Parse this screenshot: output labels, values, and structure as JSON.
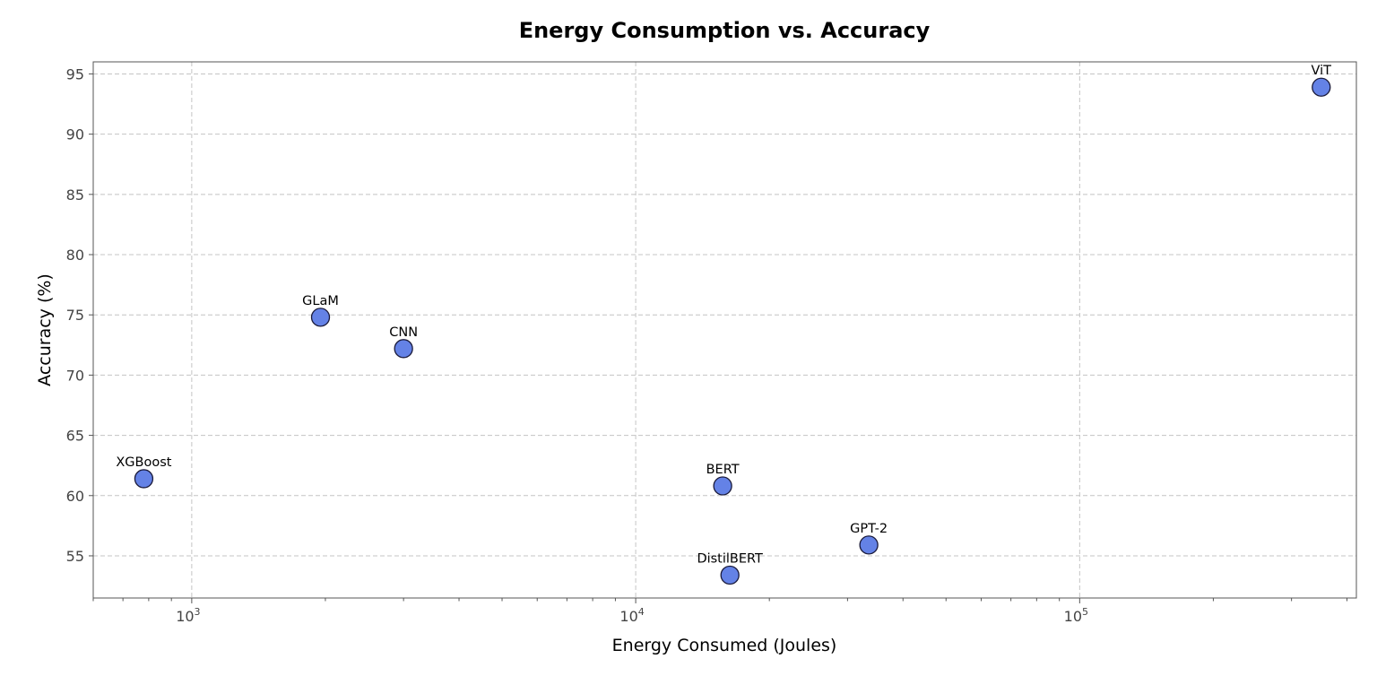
{
  "chart_data": {
    "type": "scatter",
    "title": "Energy Consumption vs. Accuracy",
    "xlabel": "Energy Consumed (Joules)",
    "ylabel": "Accuracy (%)",
    "xscale": "log",
    "xlim": [
      600,
      420000
    ],
    "ylim": [
      51.5,
      96.0
    ],
    "xticks": [
      1000,
      10000,
      100000
    ],
    "xtick_labels": [
      {
        "base": "10",
        "exp": "3"
      },
      {
        "base": "10",
        "exp": "4"
      },
      {
        "base": "10",
        "exp": "5"
      }
    ],
    "yticks": [
      55,
      60,
      65,
      70,
      75,
      80,
      85,
      90,
      95
    ],
    "grid": true,
    "marker_color": "#6482e6",
    "marker_edge_color": "#1a1a3a",
    "points": [
      {
        "label": "XGBoost",
        "x": 780,
        "y": 61.4
      },
      {
        "label": "GLaM",
        "x": 1950,
        "y": 74.8
      },
      {
        "label": "CNN",
        "x": 3000,
        "y": 72.2
      },
      {
        "label": "BERT",
        "x": 15700,
        "y": 60.8
      },
      {
        "label": "DistilBERT",
        "x": 16300,
        "y": 53.4
      },
      {
        "label": "GPT-2",
        "x": 33500,
        "y": 55.9
      },
      {
        "label": "ViT",
        "x": 350000,
        "y": 93.9
      }
    ]
  }
}
